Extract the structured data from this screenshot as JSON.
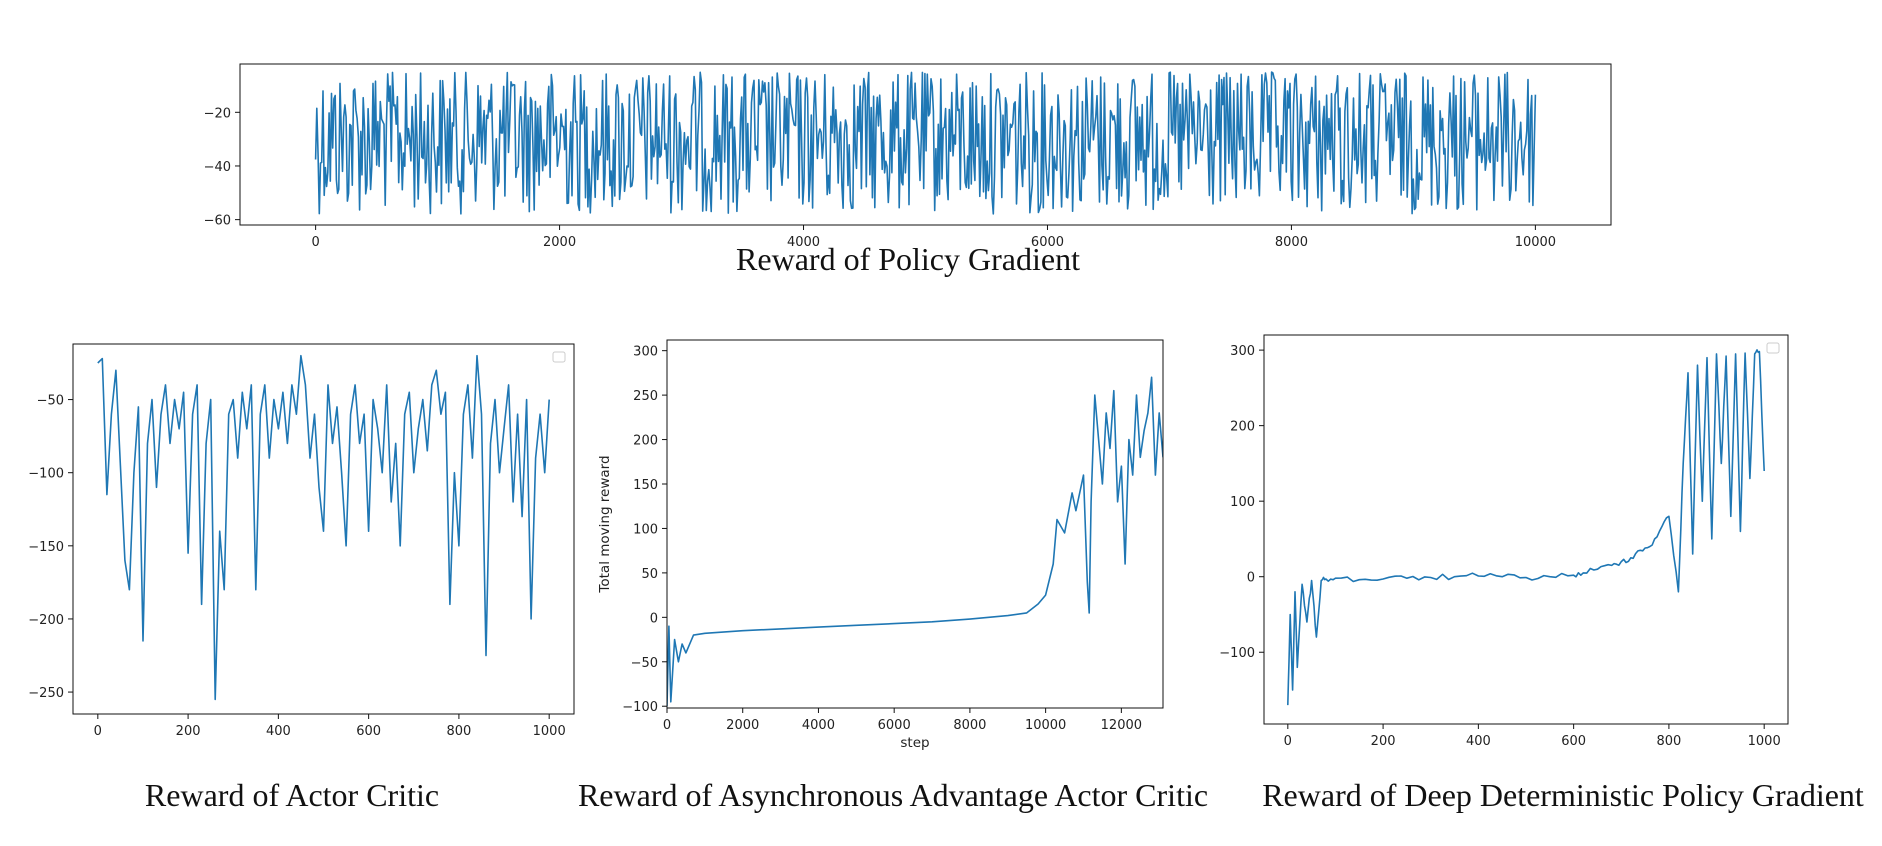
{
  "chart_data": [
    {
      "type": "line",
      "caption": "Reward of Policy Gradient",
      "xlabel": "",
      "ylabel": "",
      "xlim": [
        -620,
        10620
      ],
      "ylim": [
        -62,
        -2
      ],
      "xticks": [
        0,
        2000,
        4000,
        6000,
        8000,
        10000
      ],
      "yticks": [
        -20,
        -40,
        -60
      ],
      "legend": "none",
      "series": [
        {
          "color": "#1f77b4",
          "x": [
            0,
            400,
            800,
            1200,
            1600,
            2000,
            2400,
            2800,
            3200,
            3600,
            4000,
            4100,
            4400,
            4800,
            5200,
            5600,
            6000,
            6400,
            6800,
            7000,
            7200,
            7600,
            7900,
            8000,
            8400,
            8800,
            9200,
            9600,
            9950,
            10000
          ],
          "y": [
            -6,
            -45,
            -8,
            -50,
            -10,
            -42,
            -8,
            -48,
            -9,
            -44,
            -7,
            -60,
            -9,
            -46,
            -8,
            -50,
            -10,
            -48,
            -7,
            -60,
            -9,
            -47,
            -59,
            -8,
            -50,
            -9,
            -46,
            -8,
            -40,
            -10
          ],
          "variant": "noise",
          "band": [
            -5,
            -58
          ],
          "n_points": 1000
        }
      ]
    },
    {
      "type": "line",
      "caption": "Reward of Actor Critic",
      "xlabel": "",
      "ylabel": "",
      "xlim": [
        -55,
        1055
      ],
      "ylim": [
        -265,
        -12
      ],
      "xticks": [
        0,
        200,
        400,
        600,
        800,
        1000
      ],
      "yticks": [
        -50,
        -100,
        -150,
        -200,
        -250
      ],
      "legend": "top-right (empty)",
      "series": [
        {
          "color": "#1f77b4",
          "x": [
            0,
            10,
            20,
            30,
            40,
            50,
            60,
            70,
            80,
            90,
            100,
            110,
            120,
            130,
            140,
            150,
            160,
            170,
            180,
            190,
            200,
            210,
            220,
            230,
            240,
            250,
            260,
            270,
            280,
            290,
            300,
            310,
            320,
            330,
            340,
            350,
            360,
            370,
            380,
            390,
            400,
            410,
            420,
            430,
            440,
            450,
            460,
            470,
            480,
            490,
            500,
            510,
            520,
            530,
            540,
            550,
            560,
            570,
            580,
            590,
            600,
            610,
            620,
            630,
            640,
            650,
            660,
            670,
            680,
            690,
            700,
            710,
            720,
            730,
            740,
            750,
            760,
            770,
            780,
            790,
            800,
            810,
            820,
            830,
            840,
            850,
            860,
            870,
            880,
            890,
            900,
            910,
            920,
            930,
            940,
            950,
            960,
            970,
            980,
            990,
            1000
          ],
          "y": [
            -25,
            -22,
            -115,
            -60,
            -30,
            -95,
            -160,
            -180,
            -100,
            -55,
            -215,
            -80,
            -50,
            -110,
            -60,
            -40,
            -80,
            -50,
            -70,
            -45,
            -155,
            -60,
            -40,
            -190,
            -80,
            -50,
            -255,
            -140,
            -180,
            -60,
            -50,
            -90,
            -45,
            -70,
            -40,
            -180,
            -60,
            -40,
            -90,
            -50,
            -70,
            -45,
            -80,
            -40,
            -60,
            -20,
            -40,
            -90,
            -60,
            -110,
            -140,
            -40,
            -80,
            -55,
            -100,
            -150,
            -60,
            -40,
            -80,
            -60,
            -140,
            -50,
            -70,
            -100,
            -40,
            -120,
            -80,
            -150,
            -60,
            -45,
            -100,
            -70,
            -50,
            -85,
            -40,
            -30,
            -60,
            -45,
            -190,
            -100,
            -150,
            -60,
            -40,
            -90,
            -20,
            -60,
            -225,
            -80,
            -50,
            -100,
            -70,
            -40,
            -120,
            -60,
            -130,
            -50,
            -200,
            -90,
            -60,
            -100,
            -50
          ]
        }
      ]
    },
    {
      "type": "line",
      "caption": "Reward of Asynchronous Advantage Actor Critic",
      "xlabel": "step",
      "ylabel": "Total moving reward",
      "xlim": [
        0,
        13100
      ],
      "ylim": [
        -102,
        312
      ],
      "xticks": [
        0,
        2000,
        4000,
        6000,
        8000,
        10000,
        12000
      ],
      "yticks": [
        300,
        250,
        200,
        150,
        100,
        50,
        0,
        -50,
        -100
      ],
      "legend": "none",
      "series": [
        {
          "color": "#1f77b4",
          "x": [
            0,
            50,
            100,
            150,
            200,
            300,
            400,
            500,
            700,
            1000,
            2000,
            3000,
            4000,
            5000,
            6000,
            7000,
            8000,
            9000,
            9500,
            9800,
            10000,
            10200,
            10300,
            10500,
            10700,
            10800,
            11000,
            11100,
            11150,
            11200,
            11300,
            11400,
            11500,
            11600,
            11700,
            11800,
            11900,
            12000,
            12100,
            12200,
            12300,
            12400,
            12500,
            12600,
            12700,
            12800,
            12900,
            13000,
            13100
          ],
          "y": [
            -100,
            -10,
            -95,
            -60,
            -25,
            -50,
            -30,
            -40,
            -20,
            -18,
            -15,
            -13,
            -11,
            -9,
            -7,
            -5,
            -2,
            2,
            5,
            15,
            25,
            60,
            110,
            95,
            140,
            120,
            160,
            40,
            5,
            130,
            250,
            200,
            150,
            230,
            190,
            255,
            130,
            170,
            60,
            200,
            160,
            250,
            180,
            210,
            230,
            270,
            160,
            230,
            180
          ]
        }
      ]
    },
    {
      "type": "line",
      "caption": "Reward of Deep Deterministic Policy Gradient",
      "xlabel": "",
      "ylabel": "",
      "xlim": [
        -50,
        1050
      ],
      "ylim": [
        -195,
        320
      ],
      "xticks": [
        0,
        200,
        400,
        600,
        800,
        1000
      ],
      "yticks": [
        300,
        200,
        100,
        0,
        -100
      ],
      "legend": "top-right (empty)",
      "series": [
        {
          "color": "#1f77b4",
          "x": [
            0,
            5,
            10,
            15,
            20,
            30,
            40,
            50,
            60,
            70,
            80,
            100,
            150,
            200,
            250,
            300,
            350,
            400,
            450,
            500,
            550,
            600,
            620,
            650,
            680,
            700,
            720,
            740,
            760,
            780,
            800,
            820,
            830,
            840,
            850,
            860,
            870,
            880,
            890,
            900,
            910,
            920,
            930,
            940,
            950,
            960,
            970,
            980,
            990,
            1000
          ],
          "y": [
            -170,
            -50,
            -150,
            -20,
            -120,
            -10,
            -60,
            -5,
            -80,
            -5,
            -3,
            -2,
            -4,
            -3,
            -2,
            -1,
            0,
            1,
            0,
            -1,
            0,
            2,
            5,
            10,
            15,
            20,
            25,
            35,
            40,
            60,
            80,
            -20,
            150,
            270,
            30,
            280,
            100,
            290,
            50,
            295,
            150,
            292,
            80,
            295,
            60,
            296,
            130,
            295,
            298,
            140
          ],
          "variant": "ddpg"
        }
      ]
    }
  ]
}
